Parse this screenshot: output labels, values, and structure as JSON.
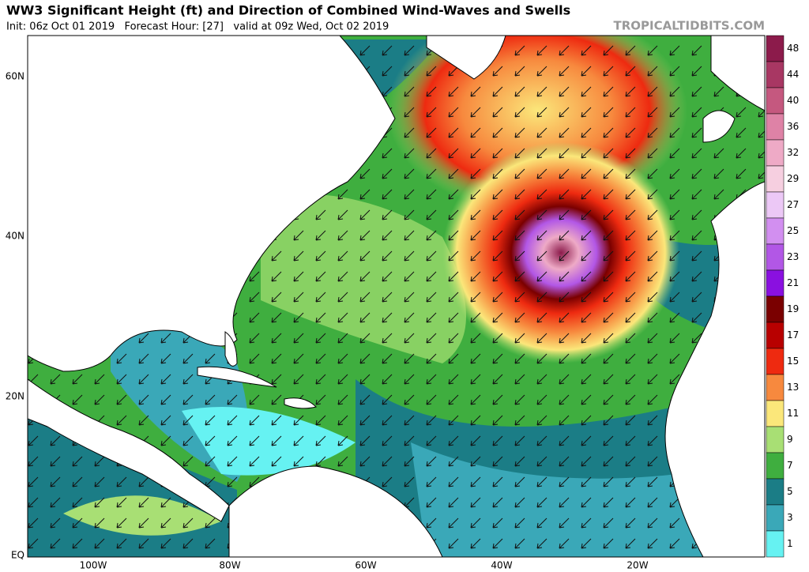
{
  "header": {
    "title": "WW3 Significant Height (ft) and Direction of Combined Wind-Waves and Swells",
    "subtitle": "Init: 06z Oct 01 2019   Forecast Hour: [27]   valid at 09z Wed, Oct 02 2019",
    "watermark": "TROPICALTIDBITS.COM"
  },
  "map": {
    "latitude_labels": [
      "60N",
      "40N",
      "20N",
      "EQ"
    ],
    "longitude_labels": [
      "100W",
      "80W",
      "60W",
      "40W",
      "20W"
    ]
  },
  "colorbar": {
    "entries": [
      {
        "label": 48,
        "color": "#8c1b4b"
      },
      {
        "label": 44,
        "color": "#a83763"
      },
      {
        "label": 40,
        "color": "#c5587f"
      },
      {
        "label": 36,
        "color": "#de82a6"
      },
      {
        "label": 32,
        "color": "#eeaac6"
      },
      {
        "label": 29,
        "color": "#f6cfe0"
      },
      {
        "label": 27,
        "color": "#ecc8f6"
      },
      {
        "label": 25,
        "color": "#d28ff0"
      },
      {
        "label": 23,
        "color": "#b257e6"
      },
      {
        "label": 21,
        "color": "#8a10e0"
      },
      {
        "label": 19,
        "color": "#7a0000"
      },
      {
        "label": 17,
        "color": "#b80000"
      },
      {
        "label": 15,
        "color": "#ee2a10"
      },
      {
        "label": 13,
        "color": "#f7893e"
      },
      {
        "label": 11,
        "color": "#fbe77a"
      },
      {
        "label": 9,
        "color": "#a8df74"
      },
      {
        "label": 7,
        "color": "#3fae3f"
      },
      {
        "label": 5,
        "color": "#1b7d86"
      },
      {
        "label": 3,
        "color": "#3aa8b8"
      },
      {
        "label": 1,
        "color": "#66f2f2"
      }
    ]
  }
}
